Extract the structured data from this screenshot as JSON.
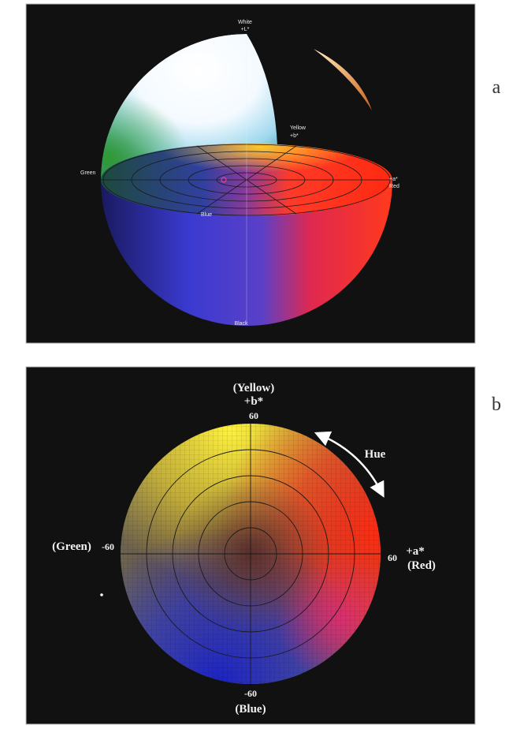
{
  "figure": {
    "panel_a": {
      "letter": "a",
      "white": "White",
      "l_axis": "+L*",
      "yellow": "Yellow",
      "b_axis": "+b*",
      "green": "Green",
      "a_axis": "+a*",
      "red": "Red",
      "blue": "Blue",
      "black": "Black"
    },
    "panel_b": {
      "letter": "b",
      "yellow": "(Yellow)",
      "b_axis": "+b*",
      "top_tick": "60",
      "hue": "Hue",
      "green": "(Green)",
      "left_tick": "-60",
      "right_tick": "60",
      "a_axis": "+a*",
      "red": "(Red)",
      "bottom_tick": "-60",
      "blue": "(Blue)"
    }
  }
}
